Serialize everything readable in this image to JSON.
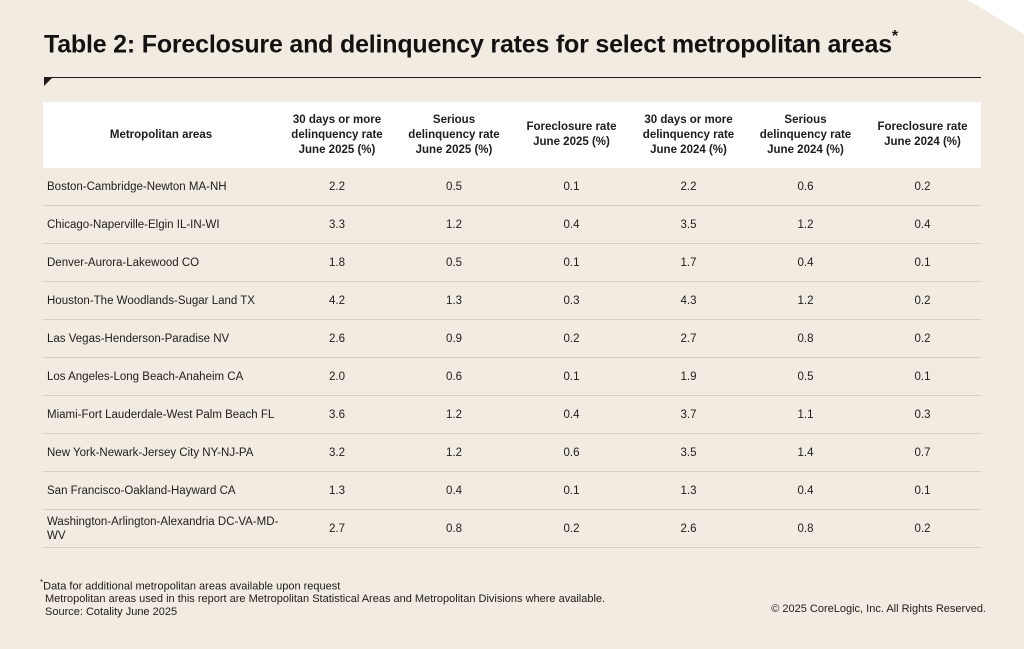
{
  "title": "Table 2: Foreclosure and delinquency rates for select metropolitan areas",
  "title_marker": "*",
  "columns": [
    "Metropolitan areas",
    "30 days or more delinquency rate June 2025 (%)",
    "Serious delinquency rate June 2025 (%)",
    "Foreclosure rate June 2025 (%)",
    "30 days or more delinquency rate June 2024 (%)",
    "Serious delinquency rate June 2024 (%)",
    "Foreclosure rate June 2024 (%)"
  ],
  "rows": [
    [
      "Boston-Cambridge-Newton MA-NH",
      "2.2",
      "0.5",
      "0.1",
      "2.2",
      "0.6",
      "0.2"
    ],
    [
      "Chicago-Naperville-Elgin IL-IN-WI",
      "3.3",
      "1.2",
      "0.4",
      "3.5",
      "1.2",
      "0.4"
    ],
    [
      "Denver-Aurora-Lakewood CO",
      "1.8",
      "0.5",
      "0.1",
      "1.7",
      "0.4",
      "0.1"
    ],
    [
      "Houston-The Woodlands-Sugar Land TX",
      "4.2",
      "1.3",
      "0.3",
      "4.3",
      "1.2",
      "0.2"
    ],
    [
      "Las Vegas-Henderson-Paradise NV",
      "2.6",
      "0.9",
      "0.2",
      "2.7",
      "0.8",
      "0.2"
    ],
    [
      "Los Angeles-Long Beach-Anaheim CA",
      "2.0",
      "0.6",
      "0.1",
      "1.9",
      "0.5",
      "0.1"
    ],
    [
      "Miami-Fort Lauderdale-West Palm Beach FL",
      "3.6",
      "1.2",
      "0.4",
      "3.7",
      "1.1",
      "0.3"
    ],
    [
      "New York-Newark-Jersey City NY-NJ-PA",
      "3.2",
      "1.2",
      "0.6",
      "3.5",
      "1.4",
      "0.7"
    ],
    [
      "San Francisco-Oakland-Hayward CA",
      "1.3",
      "0.4",
      "0.1",
      "1.3",
      "0.4",
      "0.1"
    ],
    [
      "Washington-Arlington-Alexandria DC-VA-MD-WV",
      "2.7",
      "0.8",
      "0.2",
      "2.6",
      "0.8",
      "0.2"
    ]
  ],
  "footnotes": {
    "marker": "*",
    "note_1": "Data for additional metropolitan areas available upon request",
    "note_2": "Metropolitan areas used in this report are Metropolitan Statistical Areas and Metropolitan Divisions where available.",
    "source": "Source: Cotality June 2025"
  },
  "copyright": "© 2025 CoreLogic, Inc. All Rights Reserved."
}
